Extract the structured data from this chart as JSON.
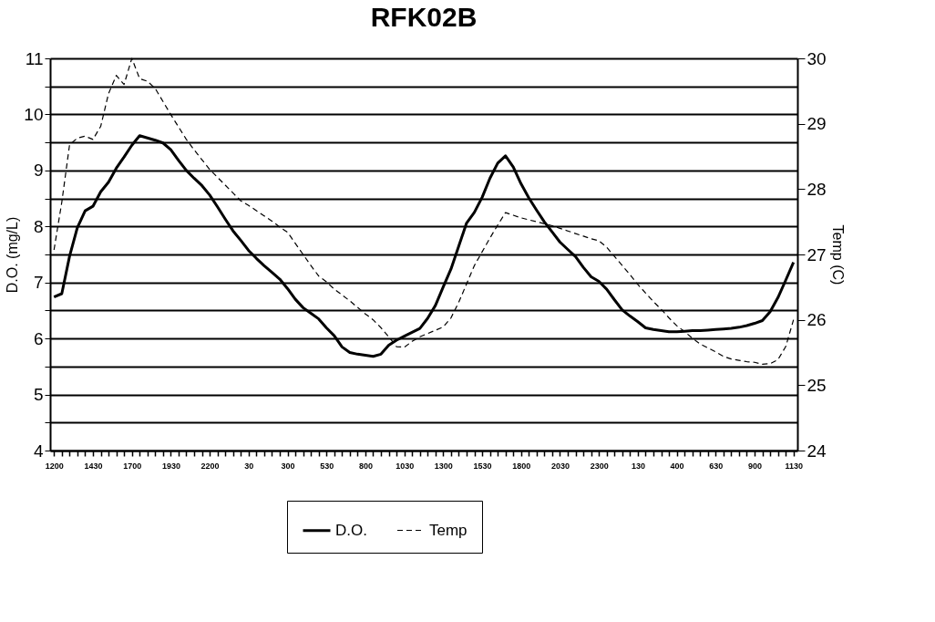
{
  "chart_data": {
    "type": "line",
    "title": "RFK02B",
    "ylabel": "D.O. (mg/L)",
    "y2label": "Temp (C)",
    "categories": [
      "1200",
      null,
      null,
      null,
      null,
      "1430",
      null,
      null,
      null,
      null,
      "1700",
      null,
      null,
      null,
      null,
      "1930",
      null,
      null,
      null,
      null,
      "2200",
      null,
      null,
      null,
      null,
      "30",
      null,
      null,
      null,
      null,
      "300",
      null,
      null,
      null,
      null,
      "530",
      null,
      null,
      null,
      null,
      "800",
      null,
      null,
      null,
      null,
      "1030",
      null,
      null,
      null,
      null,
      "1300",
      null,
      null,
      null,
      null,
      "1530",
      null,
      null,
      null,
      null,
      "1800",
      null,
      null,
      null,
      null,
      "2030",
      null,
      null,
      null,
      null,
      "2300",
      null,
      null,
      null,
      null,
      "130",
      null,
      null,
      null,
      null,
      "400",
      null,
      null,
      null,
      null,
      "630",
      null,
      null,
      null,
      null,
      "900",
      null,
      null,
      null,
      null,
      "1130"
    ],
    "ylim": [
      4,
      11
    ],
    "yticks": [
      4,
      {
        "value": 4.5,
        "label": null
      },
      5,
      {
        "value": 5.5,
        "label": null
      },
      6,
      {
        "value": 6.5,
        "label": null
      },
      7,
      {
        "value": 7.5,
        "label": null
      },
      8,
      {
        "value": 8.5,
        "label": null
      },
      9,
      {
        "value": 9.5,
        "label": null
      },
      10,
      {
        "value": 10.5,
        "label": null
      },
      11
    ],
    "y2lim": [
      24,
      30
    ],
    "y2ticks": [
      24,
      25,
      26,
      27,
      28,
      29,
      30
    ],
    "grid": "y",
    "legend": "bottom",
    "series": [
      {
        "name": "D.O.",
        "color": "#000000",
        "line_style": "solid",
        "values": [
          6.74,
          6.8,
          7.47,
          7.98,
          8.28,
          8.36,
          8.62,
          8.79,
          9.04,
          9.24,
          9.45,
          9.62,
          9.58,
          9.54,
          9.49,
          9.37,
          9.18,
          9.0,
          8.86,
          8.73,
          8.56,
          8.35,
          8.13,
          7.92,
          7.75,
          7.57,
          7.43,
          7.3,
          7.18,
          7.06,
          6.89,
          6.7,
          6.55,
          6.45,
          6.35,
          6.19,
          6.05,
          5.85,
          5.75,
          5.72,
          5.7,
          5.68,
          5.72,
          5.88,
          5.97,
          6.04,
          6.11,
          6.18,
          6.36,
          6.59,
          6.92,
          7.24,
          7.65,
          8.06,
          8.25,
          8.52,
          8.86,
          9.13,
          9.26,
          9.06,
          8.76,
          8.51,
          8.29,
          8.08,
          7.9,
          7.72,
          7.59,
          7.46,
          7.27,
          7.1,
          7.02,
          6.88,
          6.69,
          6.51,
          6.4,
          6.3,
          6.19,
          6.16,
          6.14,
          6.12,
          6.12,
          6.13,
          6.14,
          6.14,
          6.15,
          6.16,
          6.17,
          6.18,
          6.2,
          6.23,
          6.27,
          6.32,
          6.48,
          6.73,
          7.04,
          7.36
        ]
      },
      {
        "name": "Temp",
        "color": "#000000",
        "line_style": "dashed",
        "axis": "y2",
        "values": [
          27.07,
          27.8,
          28.68,
          28.78,
          28.81,
          28.76,
          28.96,
          29.46,
          29.74,
          29.6,
          30.0,
          29.69,
          29.65,
          29.54,
          29.34,
          29.14,
          28.95,
          28.76,
          28.6,
          28.45,
          28.3,
          28.18,
          28.06,
          27.94,
          27.82,
          27.75,
          27.67,
          27.59,
          27.51,
          27.42,
          27.34,
          27.17,
          27.0,
          26.83,
          26.67,
          26.58,
          26.47,
          26.38,
          26.29,
          26.19,
          26.09,
          26.0,
          25.88,
          25.74,
          25.59,
          25.58,
          25.67,
          25.74,
          25.79,
          25.84,
          25.89,
          26.03,
          26.27,
          26.55,
          26.83,
          27.04,
          27.25,
          27.45,
          27.64,
          27.6,
          27.56,
          27.53,
          27.5,
          27.47,
          27.44,
          27.4,
          27.36,
          27.32,
          27.28,
          27.24,
          27.21,
          27.11,
          26.97,
          26.83,
          26.69,
          26.54,
          26.41,
          26.28,
          26.16,
          26.03,
          25.91,
          25.82,
          25.72,
          25.63,
          25.57,
          25.51,
          25.44,
          25.4,
          25.38,
          25.36,
          25.35,
          25.32,
          25.33,
          25.39,
          25.59,
          26.0
        ]
      }
    ]
  }
}
